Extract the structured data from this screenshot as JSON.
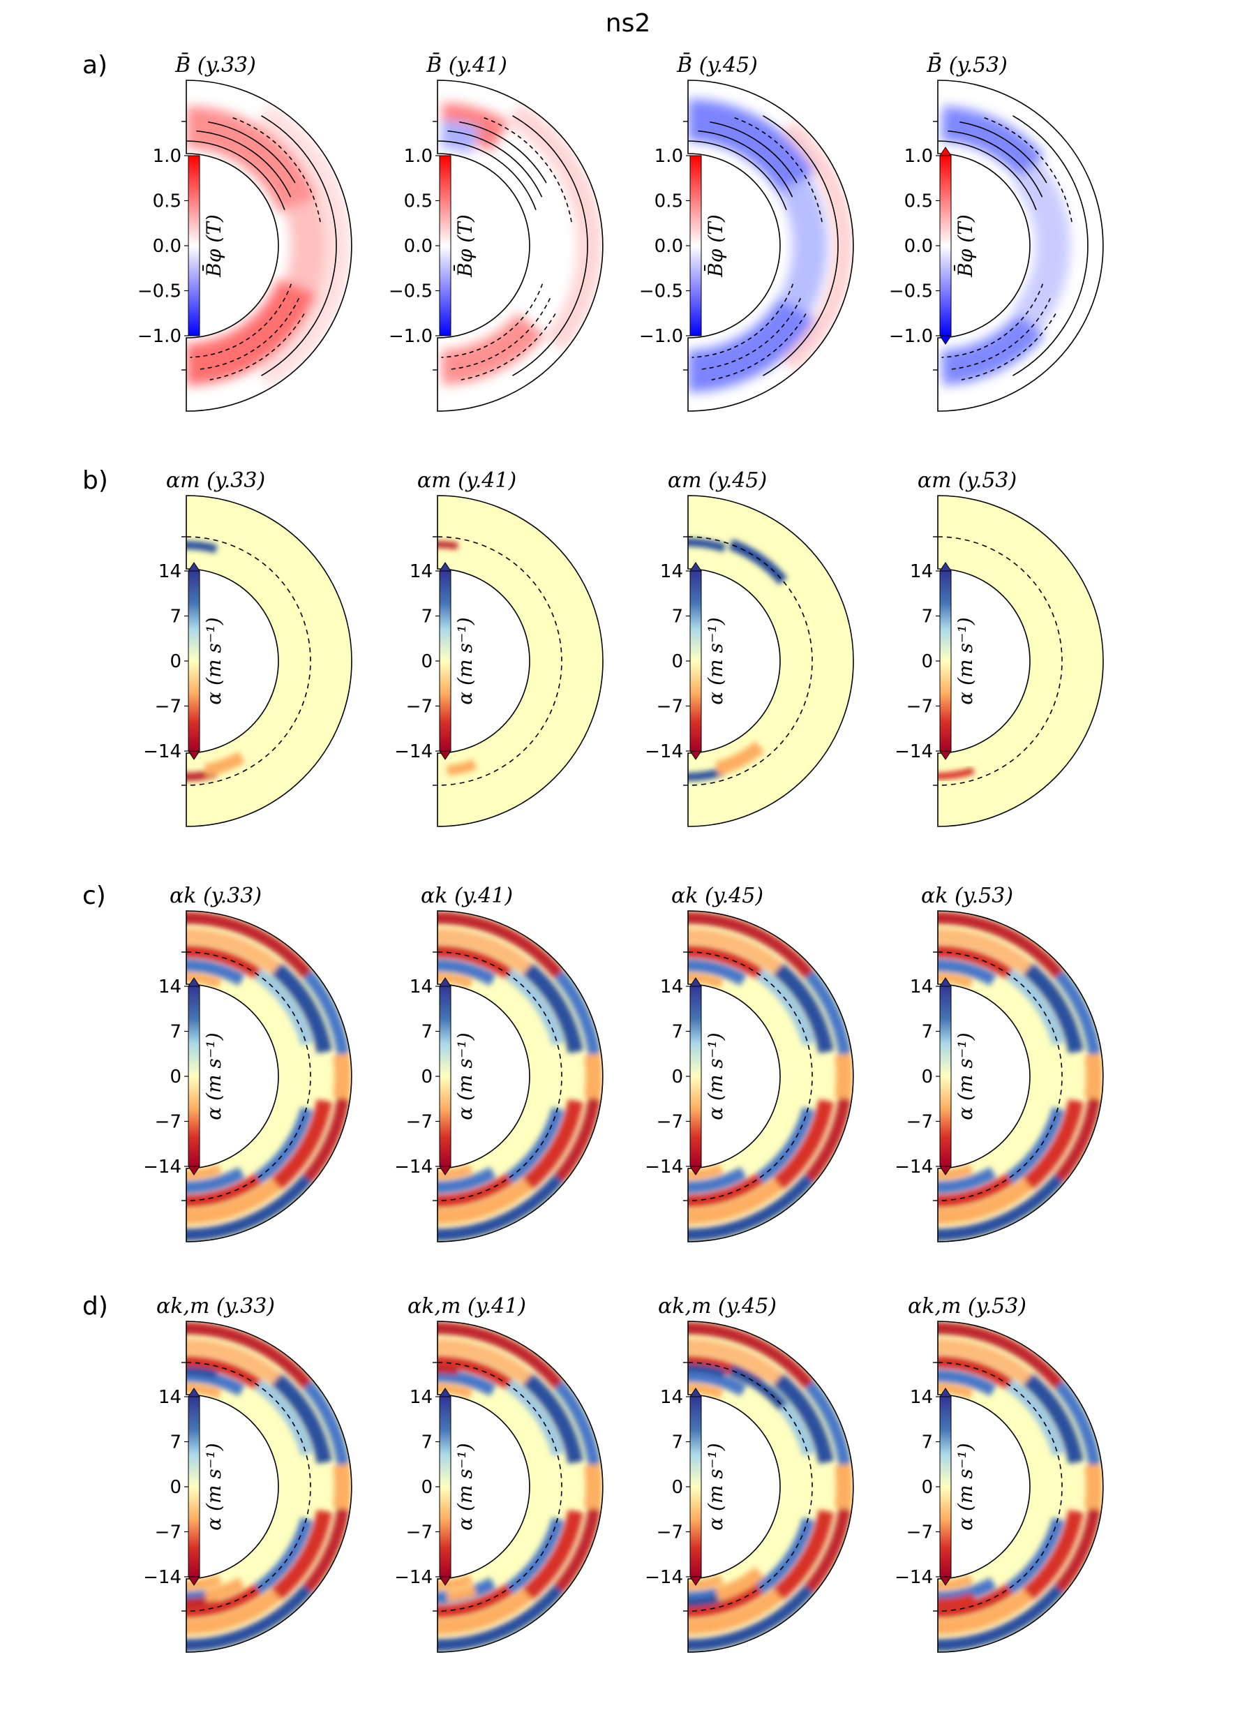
{
  "figure_title": "ns2",
  "chart_data": [
    {
      "type": "heatmap",
      "row_label": "a)",
      "quantity": "B_phi",
      "panel_titles": [
        "B̄ (y.33)",
        "B̄ (y.41)",
        "B̄ (y.45)",
        "B̄ (y.53)"
      ],
      "years": [
        "y.33",
        "y.41",
        "y.45",
        "y.53"
      ],
      "colorbar_label": "B̄φ (T)",
      "colormap": "bwr",
      "clim": [
        -1.0,
        1.0
      ],
      "ticks": [
        "1.0",
        "0.5",
        "0.0",
        "−0.5",
        "−1.0"
      ],
      "contours": "poloidal field lines (solid positive, dashed negative)"
    },
    {
      "type": "heatmap",
      "row_label": "b)",
      "quantity": "alpha_m",
      "panel_titles": [
        "αm (y.33)",
        "αm (y.41)",
        "αm (y.45)",
        "αm (y.53)"
      ],
      "years": [
        "y.33",
        "y.41",
        "y.45",
        "y.53"
      ],
      "colorbar_label": "α (m s⁻¹)",
      "colormap": "RdYlBu",
      "clim": [
        -14,
        14
      ],
      "ticks": [
        "14",
        "7",
        "0",
        "−7",
        "−14"
      ]
    },
    {
      "type": "heatmap",
      "row_label": "c)",
      "quantity": "alpha_k",
      "panel_titles": [
        "αk (y.33)",
        "αk (y.41)",
        "αk (y.45)",
        "αk (y.53)"
      ],
      "years": [
        "y.33",
        "y.41",
        "y.45",
        "y.53"
      ],
      "colorbar_label": "α (m s⁻¹)",
      "colormap": "RdYlBu",
      "clim": [
        -14,
        14
      ],
      "ticks": [
        "14",
        "7",
        "0",
        "−7",
        "−14"
      ]
    },
    {
      "type": "heatmap",
      "row_label": "d)",
      "quantity": "alpha_km",
      "panel_titles": [
        "αk,m (y.33)",
        "αk,m (y.41)",
        "αk,m (y.45)",
        "αk,m (y.53)"
      ],
      "years": [
        "y.33",
        "y.41",
        "y.45",
        "y.53"
      ],
      "colorbar_label": "α (m s⁻¹)",
      "colormap": "RdYlBu",
      "clim": [
        -14,
        14
      ],
      "ticks": [
        "14",
        "7",
        "0",
        "−7",
        "−14"
      ]
    }
  ],
  "colors": {
    "red": "#ff2a2a",
    "blue": "#2b3bff",
    "rdylbu_red": "#b2182b",
    "rdylbu_blue": "#2c4f9e",
    "rdylbu_mid": "#ffffbf"
  }
}
